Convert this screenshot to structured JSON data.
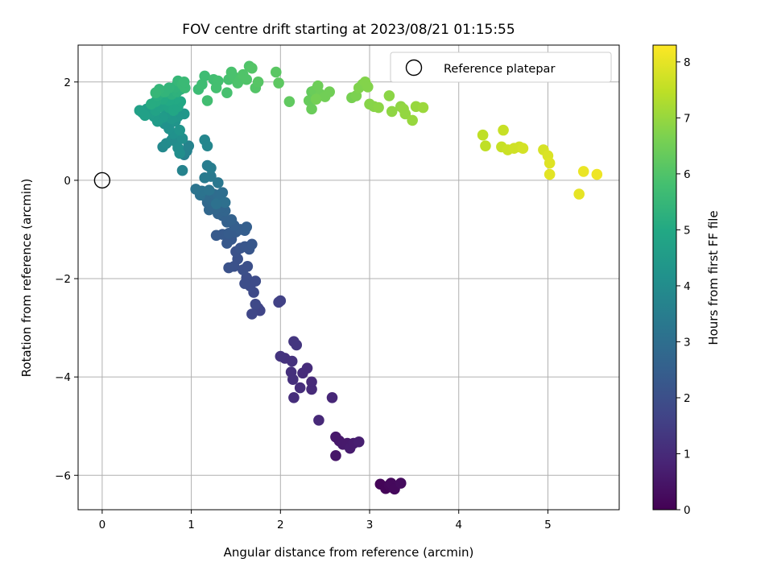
{
  "chart_data": {
    "type": "scatter",
    "title": "FOV centre drift starting at 2023/08/21 01:15:55",
    "xlabel": "Angular distance from reference (arcmin)",
    "ylabel": "Rotation from reference (arcmin)",
    "xlim": [
      -0.27,
      5.8
    ],
    "ylim": [
      -6.7,
      2.75
    ],
    "xticks": [
      "0",
      "1",
      "2",
      "3",
      "4",
      "5"
    ],
    "xtick_values": [
      0,
      1,
      2,
      3,
      4,
      5
    ],
    "yticks": [
      "−6",
      "−4",
      "−2",
      "0",
      "2"
    ],
    "ytick_values": [
      -6,
      -4,
      -2,
      0,
      2
    ],
    "grid": true,
    "legend": {
      "position": "top-right",
      "entries": [
        "Reference platepar"
      ]
    },
    "reference_point": {
      "x": 0,
      "y": 0,
      "label": "Reference platepar"
    },
    "colorbar": {
      "label": "Hours from first FF file",
      "colormap": "viridis",
      "range": [
        0,
        8.3
      ],
      "ticks": [
        "0",
        "1",
        "2",
        "3",
        "4",
        "5",
        "6",
        "7",
        "8"
      ],
      "tick_values": [
        0,
        1,
        2,
        3,
        4,
        5,
        6,
        7,
        8
      ]
    },
    "points": [
      [
        3.12,
        -6.18,
        0.1
      ],
      [
        3.18,
        -6.27,
        0.1
      ],
      [
        3.22,
        -6.2,
        0.15
      ],
      [
        3.26,
        -6.25,
        0.15
      ],
      [
        3.24,
        -6.16,
        0.2
      ],
      [
        3.28,
        -6.28,
        0.2
      ],
      [
        3.35,
        -6.16,
        0.25
      ],
      [
        2.62,
        -5.6,
        0.5
      ],
      [
        2.62,
        -5.22,
        0.55
      ],
      [
        2.66,
        -5.3,
        0.55
      ],
      [
        2.7,
        -5.37,
        0.6
      ],
      [
        2.75,
        -5.35,
        0.6
      ],
      [
        2.78,
        -5.45,
        0.65
      ],
      [
        2.82,
        -5.35,
        0.65
      ],
      [
        2.88,
        -5.32,
        0.7
      ],
      [
        2.58,
        -4.42,
        0.9
      ],
      [
        2.43,
        -4.88,
        0.95
      ],
      [
        2.35,
        -4.25,
        1.0
      ],
      [
        2.35,
        -4.1,
        1.0
      ],
      [
        2.3,
        -3.82,
        1.05
      ],
      [
        2.25,
        -3.92,
        1.05
      ],
      [
        2.22,
        -4.22,
        1.1
      ],
      [
        2.15,
        -4.42,
        1.1
      ],
      [
        2.14,
        -4.05,
        1.15
      ],
      [
        2.12,
        -3.9,
        1.15
      ],
      [
        2.13,
        -3.68,
        1.2
      ],
      [
        2.05,
        -3.62,
        1.2
      ],
      [
        2.0,
        -3.58,
        1.25
      ],
      [
        2.18,
        -3.35,
        1.3
      ],
      [
        2.15,
        -3.28,
        1.3
      ],
      [
        1.98,
        -2.48,
        1.6
      ],
      [
        2.0,
        -2.45,
        1.6
      ],
      [
        1.75,
        -2.6,
        1.7
      ],
      [
        1.77,
        -2.65,
        1.7
      ],
      [
        1.68,
        -2.72,
        1.75
      ],
      [
        1.72,
        -2.52,
        1.8
      ],
      [
        1.7,
        -2.28,
        1.85
      ],
      [
        1.66,
        -2.15,
        1.9
      ],
      [
        1.72,
        -2.05,
        1.9
      ],
      [
        1.62,
        -1.98,
        1.95
      ],
      [
        1.6,
        -2.1,
        1.95
      ],
      [
        1.58,
        -1.82,
        2.0
      ],
      [
        1.63,
        -1.75,
        2.0
      ],
      [
        1.52,
        -1.6,
        2.05
      ],
      [
        1.48,
        -1.75,
        2.05
      ],
      [
        1.42,
        -1.78,
        2.1
      ],
      [
        1.5,
        -1.45,
        2.1
      ],
      [
        1.55,
        -1.38,
        2.15
      ],
      [
        1.6,
        -1.35,
        2.2
      ],
      [
        1.65,
        -1.4,
        2.2
      ],
      [
        1.68,
        -1.3,
        2.25
      ],
      [
        1.45,
        -1.2,
        2.3
      ],
      [
        1.4,
        -1.28,
        2.3
      ],
      [
        1.35,
        -1.1,
        2.35
      ],
      [
        1.28,
        -1.12,
        2.35
      ],
      [
        1.42,
        -1.08,
        2.4
      ],
      [
        1.5,
        -1.05,
        2.4
      ],
      [
        1.55,
        -1.0,
        2.45
      ],
      [
        1.6,
        -1.02,
        2.45
      ],
      [
        1.62,
        -0.95,
        2.5
      ],
      [
        1.48,
        -0.92,
        2.5
      ],
      [
        1.4,
        -0.85,
        2.55
      ],
      [
        1.45,
        -0.8,
        2.6
      ],
      [
        1.35,
        -0.72,
        2.6
      ],
      [
        1.3,
        -0.68,
        2.65
      ],
      [
        1.38,
        -0.62,
        2.7
      ],
      [
        1.33,
        -0.55,
        2.7
      ],
      [
        1.27,
        -0.58,
        2.75
      ],
      [
        1.2,
        -0.6,
        2.75
      ],
      [
        1.18,
        -0.45,
        2.8
      ],
      [
        1.22,
        -0.4,
        2.85
      ],
      [
        1.15,
        -0.32,
        2.9
      ],
      [
        1.25,
        -0.28,
        2.9
      ],
      [
        1.3,
        -0.3,
        2.95
      ],
      [
        1.35,
        -0.25,
        3.0
      ],
      [
        1.32,
        -0.4,
        3.0
      ],
      [
        1.38,
        -0.45,
        3.05
      ],
      [
        1.28,
        -0.48,
        3.1
      ],
      [
        1.1,
        -0.3,
        3.1
      ],
      [
        1.12,
        -0.22,
        3.15
      ],
      [
        1.05,
        -0.18,
        3.2
      ],
      [
        1.2,
        -0.2,
        3.2
      ],
      [
        1.3,
        -0.05,
        3.3
      ],
      [
        1.22,
        0.08,
        3.35
      ],
      [
        1.15,
        0.05,
        3.4
      ],
      [
        1.18,
        0.3,
        3.45
      ],
      [
        1.22,
        0.25,
        3.5
      ],
      [
        0.92,
        0.52,
        3.6
      ],
      [
        0.95,
        0.6,
        3.65
      ],
      [
        0.97,
        0.7,
        3.7
      ],
      [
        0.9,
        0.2,
        3.7
      ],
      [
        1.15,
        0.82,
        3.8
      ],
      [
        1.18,
        0.7,
        3.8
      ],
      [
        0.68,
        0.68,
        3.9
      ],
      [
        0.72,
        0.75,
        3.95
      ],
      [
        0.78,
        0.82,
        4.0
      ],
      [
        0.83,
        0.78,
        4.0
      ],
      [
        0.85,
        0.66,
        4.05
      ],
      [
        0.87,
        0.55,
        4.05
      ],
      [
        0.9,
        0.85,
        4.1
      ],
      [
        0.8,
        0.95,
        4.15
      ],
      [
        0.75,
        1.05,
        4.2
      ],
      [
        0.7,
        1.15,
        4.2
      ],
      [
        0.82,
        1.2,
        4.25
      ],
      [
        0.87,
        1.02,
        4.3
      ],
      [
        0.92,
        1.35,
        4.35
      ],
      [
        0.85,
        1.3,
        4.35
      ],
      [
        0.78,
        1.25,
        4.4
      ],
      [
        0.72,
        1.35,
        4.45
      ],
      [
        0.68,
        1.28,
        4.5
      ],
      [
        0.62,
        1.2,
        4.5
      ],
      [
        0.58,
        1.3,
        4.55
      ],
      [
        0.55,
        1.38,
        4.6
      ],
      [
        0.5,
        1.45,
        4.6
      ],
      [
        0.45,
        1.38,
        4.65
      ],
      [
        0.42,
        1.42,
        4.7
      ],
      [
        0.48,
        1.32,
        4.7
      ],
      [
        0.6,
        1.42,
        4.75
      ],
      [
        0.65,
        1.5,
        4.8
      ],
      [
        0.7,
        1.55,
        4.8
      ],
      [
        0.75,
        1.48,
        4.85
      ],
      [
        0.8,
        1.42,
        4.9
      ],
      [
        0.85,
        1.5,
        4.9
      ],
      [
        0.88,
        1.6,
        4.95
      ],
      [
        0.82,
        1.65,
        5.0
      ],
      [
        0.75,
        1.62,
        5.0
      ],
      [
        0.68,
        1.65,
        5.05
      ],
      [
        0.6,
        1.6,
        5.1
      ],
      [
        0.55,
        1.55,
        5.1
      ],
      [
        0.62,
        1.72,
        5.15
      ],
      [
        0.66,
        1.78,
        5.2
      ],
      [
        0.72,
        1.82,
        5.2
      ],
      [
        0.78,
        1.75,
        5.25
      ],
      [
        0.84,
        1.8,
        5.3
      ],
      [
        0.88,
        1.85,
        5.3
      ],
      [
        0.82,
        1.9,
        5.35
      ],
      [
        0.75,
        1.88,
        5.4
      ],
      [
        0.7,
        1.8,
        5.4
      ],
      [
        0.64,
        1.85,
        5.45
      ],
      [
        0.6,
        1.78,
        5.5
      ],
      [
        0.85,
        2.02,
        5.5
      ],
      [
        0.9,
        1.95,
        5.55
      ],
      [
        0.93,
        1.88,
        5.6
      ],
      [
        0.92,
        2.0,
        5.6
      ],
      [
        1.08,
        1.85,
        5.65
      ],
      [
        1.12,
        1.95,
        5.7
      ],
      [
        1.15,
        2.12,
        5.7
      ],
      [
        1.18,
        1.62,
        5.75
      ],
      [
        1.25,
        2.05,
        5.75
      ],
      [
        1.3,
        2.02,
        5.8
      ],
      [
        1.28,
        1.88,
        5.8
      ],
      [
        1.4,
        1.78,
        5.85
      ],
      [
        1.42,
        2.05,
        5.85
      ],
      [
        1.45,
        2.2,
        5.9
      ],
      [
        1.48,
        2.1,
        5.9
      ],
      [
        1.52,
        1.98,
        5.95
      ],
      [
        1.55,
        2.05,
        5.95
      ],
      [
        1.58,
        2.15,
        6.0
      ],
      [
        1.62,
        2.05,
        6.0
      ],
      [
        1.65,
        2.32,
        6.0
      ],
      [
        1.68,
        2.28,
        6.05
      ],
      [
        1.72,
        1.88,
        6.05
      ],
      [
        1.75,
        2.0,
        6.1
      ],
      [
        1.95,
        2.2,
        6.15
      ],
      [
        1.98,
        1.98,
        6.2
      ],
      [
        2.1,
        1.6,
        6.25
      ],
      [
        2.35,
        1.8,
        6.3
      ],
      [
        2.32,
        1.62,
        6.35
      ],
      [
        2.35,
        1.45,
        6.4
      ],
      [
        2.38,
        1.82,
        6.4
      ],
      [
        2.42,
        1.92,
        6.45
      ],
      [
        2.45,
        1.75,
        6.45
      ],
      [
        2.5,
        1.7,
        6.5
      ],
      [
        2.55,
        1.8,
        6.5
      ],
      [
        2.4,
        1.65,
        6.55
      ],
      [
        2.8,
        1.68,
        6.6
      ],
      [
        2.85,
        1.72,
        6.65
      ],
      [
        2.88,
        1.88,
        6.7
      ],
      [
        2.92,
        1.95,
        6.7
      ],
      [
        2.95,
        2.0,
        6.75
      ],
      [
        2.98,
        1.9,
        6.75
      ],
      [
        3.0,
        1.55,
        6.8
      ],
      [
        3.05,
        1.5,
        6.8
      ],
      [
        3.1,
        1.48,
        6.85
      ],
      [
        3.22,
        1.72,
        6.85
      ],
      [
        3.25,
        1.4,
        6.9
      ],
      [
        3.35,
        1.5,
        6.9
      ],
      [
        3.38,
        1.45,
        6.95
      ],
      [
        3.4,
        1.35,
        6.95
      ],
      [
        3.48,
        1.22,
        7.0
      ],
      [
        3.52,
        1.5,
        7.0
      ],
      [
        3.6,
        1.48,
        7.05
      ],
      [
        4.27,
        0.92,
        7.5
      ],
      [
        4.3,
        0.7,
        7.5
      ],
      [
        4.5,
        1.02,
        7.6
      ],
      [
        4.48,
        0.68,
        7.6
      ],
      [
        4.55,
        0.62,
        7.65
      ],
      [
        4.62,
        0.65,
        7.7
      ],
      [
        4.68,
        0.68,
        7.7
      ],
      [
        4.72,
        0.65,
        7.75
      ],
      [
        4.95,
        0.62,
        7.8
      ],
      [
        5.0,
        0.5,
        7.85
      ],
      [
        5.02,
        0.35,
        7.9
      ],
      [
        5.02,
        0.12,
        7.95
      ],
      [
        5.35,
        -0.28,
        8.0
      ],
      [
        5.4,
        0.18,
        8.05
      ],
      [
        5.55,
        0.12,
        8.1
      ]
    ]
  }
}
